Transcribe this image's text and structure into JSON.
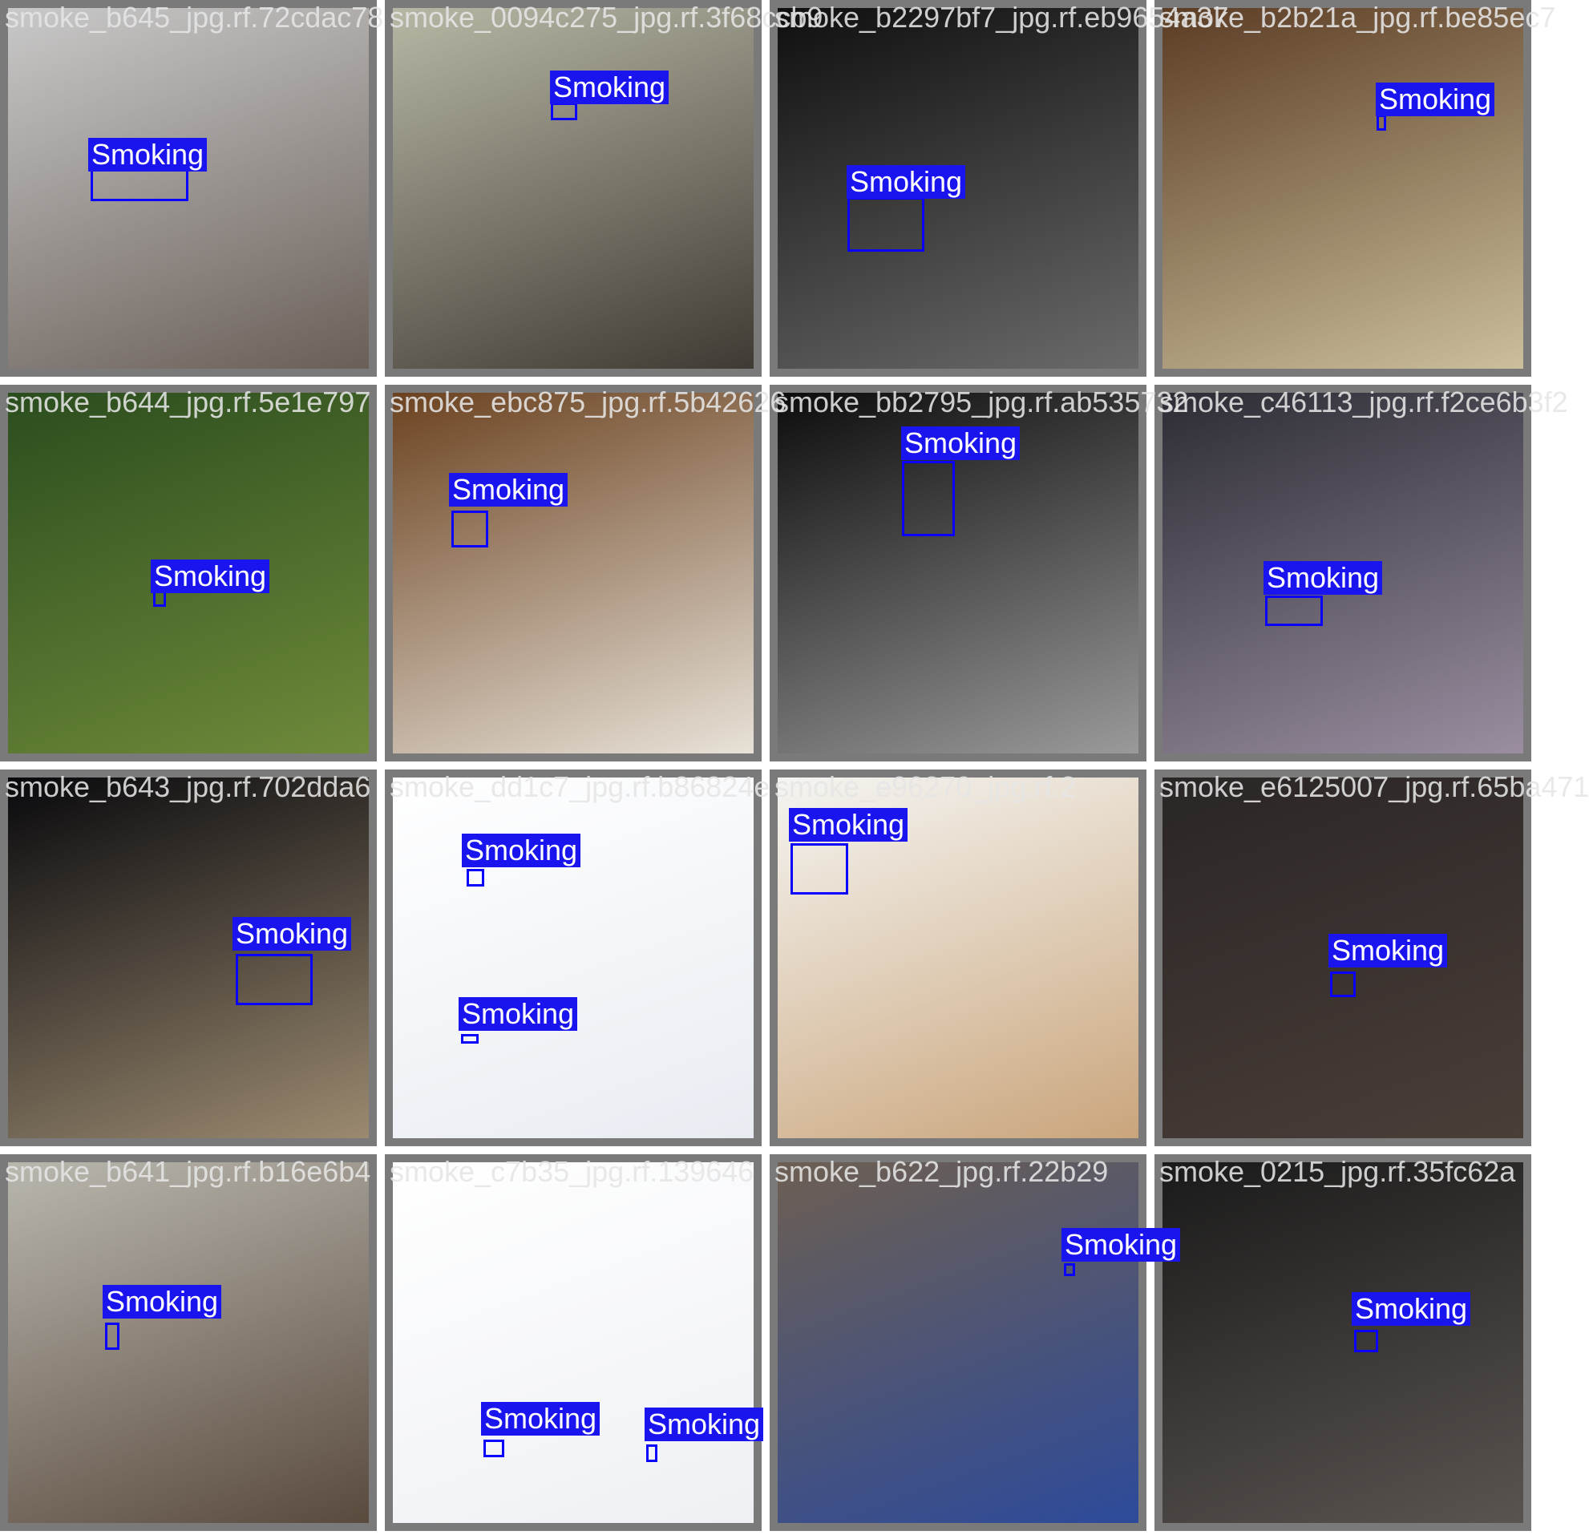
{
  "detection_label": "Smoking",
  "colors": {
    "box": "#0a00ff",
    "label_bg": "#1a14ee",
    "tile_border": "#7a7a7a",
    "filename_text": "#e6e6e6"
  },
  "tiles": [
    {
      "filename": "smoke_b645_jpg.rf.72cdac78",
      "tint": [
        "#c9c9c9",
        "#6a5f58"
      ]
    },
    {
      "filename": "smoke_0094c275_jpg.rf.3f68ccb9",
      "tint": [
        "#b8b7a5",
        "#3f3a33"
      ]
    },
    {
      "filename": "smoke_b2297bf7_jpg.rf.eb9654a37",
      "tint": [
        "#0f0f0f",
        "#6a6a6a"
      ]
    },
    {
      "filename": "smoke_b2b21a_jpg.rf.be85ec7",
      "tint": [
        "#5b3c24",
        "#cbbf9c"
      ]
    },
    {
      "filename": "smoke_b644_jpg.rf.5e1e797",
      "tint": [
        "#2b4d1e",
        "#6f8a3a"
      ]
    },
    {
      "filename": "smoke_ebc875_jpg.rf.5b42626",
      "tint": [
        "#6b4220",
        "#e8e2d8"
      ]
    },
    {
      "filename": "smoke_bb2795_jpg.rf.ab535732",
      "tint": [
        "#0c0c0c",
        "#9a9a9a"
      ]
    },
    {
      "filename": "smoke_c46113_jpg.rf.f2ce6b3f2",
      "tint": [
        "#2c2c34",
        "#9a8ea0"
      ]
    },
    {
      "filename": "smoke_b643_jpg.rf.702dda6",
      "tint": [
        "#08080c",
        "#9b8a70"
      ]
    },
    {
      "filename": "smoke_dd1c7_jpg.rf.b86824e",
      "tint": [
        "#ffffff",
        "#e8ecf2"
      ]
    },
    {
      "filename": "smoke_e96270_jpg.rf.2",
      "tint": [
        "#f5f5f2",
        "#caa57c"
      ]
    },
    {
      "filename": "smoke_e6125007_jpg.rf.65ba471",
      "tint": [
        "#2a2626",
        "#4a3e38"
      ]
    },
    {
      "filename": "smoke_b641_jpg.rf.b16e6b4",
      "tint": [
        "#b9b7ae",
        "#5a4a3e"
      ]
    },
    {
      "filename": "smoke_c7b35_jpg.rf.139646",
      "tint": [
        "#ffffff",
        "#eef0f4"
      ]
    },
    {
      "filename": "smoke_b622_jpg.rf.22b29",
      "tint": [
        "#6d5f52",
        "#2d4a9a"
      ]
    },
    {
      "filename": "smoke_0215_jpg.rf.35fc62a",
      "tint": [
        "#1a1a1a",
        "#5a5450"
      ]
    }
  ]
}
